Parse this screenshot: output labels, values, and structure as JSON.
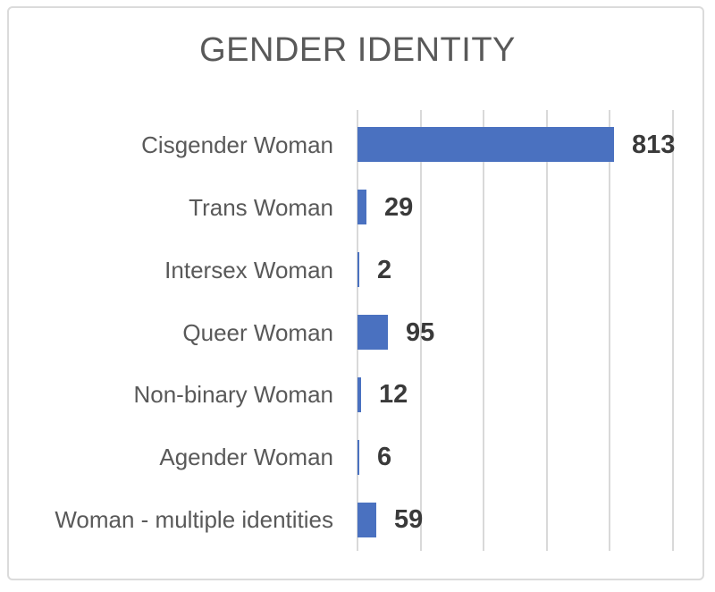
{
  "frame": {
    "background": "#ffffff",
    "border_color": "#dbdbdb"
  },
  "chart_data": {
    "type": "bar",
    "orientation": "horizontal",
    "title": "GENDER IDENTITY",
    "categories": [
      "Cisgender Woman",
      "Trans Woman",
      "Intersex Woman",
      "Queer Woman",
      "Non-binary Woman",
      "Agender Woman",
      "Woman - multiple identities"
    ],
    "values": [
      813,
      29,
      2,
      95,
      12,
      6,
      59
    ],
    "value_labels": [
      "813",
      "29",
      "2",
      "95",
      "12",
      "6",
      "59"
    ],
    "xlabel": "",
    "ylabel": "",
    "xlim": [
      0,
      1000
    ],
    "gridline_step": 200,
    "grid": true,
    "legend": false,
    "data_labels": true,
    "bar_color": "#4a71c0",
    "gridline_color": "#d9d9d9",
    "title_color": "#595959",
    "label_color": "#595959",
    "value_label_color": "#3a3a3a"
  }
}
